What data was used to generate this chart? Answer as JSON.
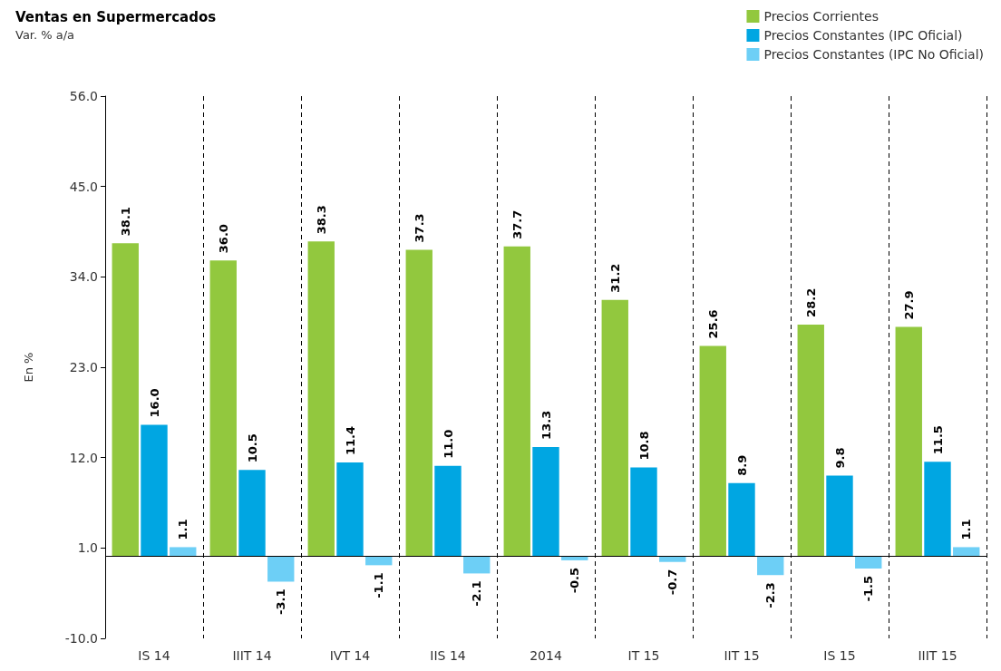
{
  "chart_data": {
    "type": "bar",
    "title": "Ventas en Supermercados",
    "subtitle": "Var. % a/a",
    "ylabel": "En %",
    "categories": [
      "IS 14",
      "IIIT 14",
      "IVT 14",
      "IIS 14",
      "2014",
      "IT 15",
      "IIT 15",
      "IS 15",
      "IIIT 15"
    ],
    "series": [
      {
        "name": "Precios Corrientes",
        "color": "#92c83e",
        "values": [
          38.1,
          36.0,
          38.3,
          37.3,
          37.7,
          31.2,
          25.6,
          28.2,
          27.9
        ],
        "value_labels": [
          "38.1",
          "36.0",
          "38.3",
          "37.3",
          "37.7",
          "31.2",
          "25.6",
          "28.2",
          "27.9"
        ]
      },
      {
        "name": "Precios Constantes (IPC Oficial)",
        "color": "#00a6e2",
        "values": [
          16.0,
          10.5,
          11.4,
          11.0,
          13.3,
          10.8,
          8.9,
          9.8,
          11.5
        ],
        "value_labels": [
          "16.0",
          "10.5",
          "11.4",
          "11.0",
          "13.3",
          "10.8",
          "8.9",
          "9.8",
          "11.5"
        ]
      },
      {
        "name": "Precios Constantes (IPC No Oficial)",
        "color": "#6dcff6",
        "values": [
          1.1,
          -3.1,
          -1.1,
          -2.1,
          -0.5,
          -0.7,
          -2.3,
          -1.5,
          1.1
        ],
        "value_labels": [
          "1.1",
          "-3.1",
          "-1.1",
          "-2.1",
          "-0.5",
          "-0.7",
          "-2.3",
          "-1.5",
          "1.1"
        ]
      }
    ],
    "ylim": [
      -10,
      56
    ],
    "yticks": [
      {
        "value": -10,
        "label": "-10.0"
      },
      {
        "value": 1,
        "label": "1.0"
      },
      {
        "value": 12,
        "label": "12.0"
      },
      {
        "value": 23,
        "label": "23.0"
      },
      {
        "value": 34,
        "label": "34.0"
      },
      {
        "value": 45,
        "label": "45.0"
      },
      {
        "value": 56,
        "label": "56.0"
      }
    ],
    "ref_lines": [
      {
        "axis": "y",
        "value": 0,
        "color": "#000000"
      }
    ],
    "grid": "x",
    "legend": "top right"
  }
}
